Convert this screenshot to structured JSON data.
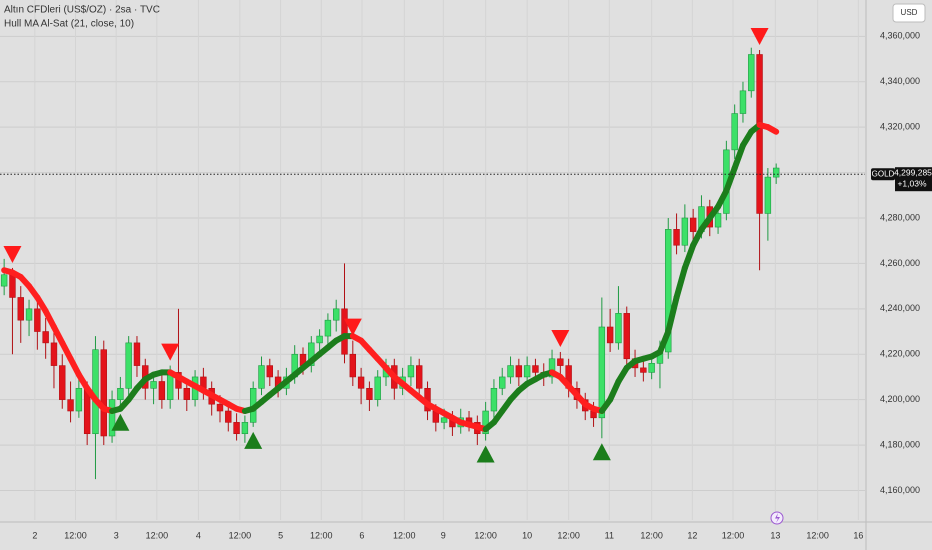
{
  "chart_data": {
    "type": "candlestick",
    "title": "Altın CFDleri (US$/OZ) · 2sa · TVC",
    "subtitle": "Hull MA Al-Sat (21, close, 10)",
    "currency": "USD",
    "symbol": "GOLD",
    "last_price": {
      "value": 4299.285,
      "label": "4,299,285"
    },
    "change_label": "+1,03%",
    "up_color": "#3ce068",
    "down_color": "#e3141b",
    "grid": true,
    "ylim": [
      4147,
      4376
    ],
    "yticks": [
      {
        "value": 4160,
        "label": "4,160,000"
      },
      {
        "value": 4180,
        "label": "4,180,000"
      },
      {
        "value": 4200,
        "label": "4,200,000"
      },
      {
        "value": 4220,
        "label": "4,220,000"
      },
      {
        "value": 4240,
        "label": "4,240,000"
      },
      {
        "value": 4260,
        "label": "4,260,000"
      },
      {
        "value": 4280,
        "label": "4,280,000"
      },
      {
        "value": 4300,
        "label": "4,300,000"
      },
      {
        "value": 4320,
        "label": "4,320,000"
      },
      {
        "value": 4340,
        "label": "4,340,000"
      },
      {
        "value": 4360,
        "label": "4,360,000"
      }
    ],
    "xlim": [
      -0.5,
      103.7
    ],
    "xticks": [
      {
        "value": 3.7,
        "label": "2"
      },
      {
        "value": 8.6,
        "label": "12:00"
      },
      {
        "value": 13.5,
        "label": "3"
      },
      {
        "value": 18.4,
        "label": "12:00"
      },
      {
        "value": 23.4,
        "label": "4"
      },
      {
        "value": 28.4,
        "label": "12:00"
      },
      {
        "value": 33.3,
        "label": "5"
      },
      {
        "value": 38.2,
        "label": "12:00"
      },
      {
        "value": 43.1,
        "label": "6"
      },
      {
        "value": 48.2,
        "label": "12:00"
      },
      {
        "value": 52.9,
        "label": "9"
      },
      {
        "value": 58,
        "label": "12:00"
      },
      {
        "value": 63,
        "label": "10"
      },
      {
        "value": 68,
        "label": "12:00"
      },
      {
        "value": 72.9,
        "label": "11"
      },
      {
        "value": 78,
        "label": "12:00"
      },
      {
        "value": 82.9,
        "label": "12"
      },
      {
        "value": 87.8,
        "label": "12:00"
      },
      {
        "value": 92.9,
        "label": "13"
      },
      {
        "value": 98,
        "label": "12:00"
      },
      {
        "value": 102.9,
        "label": "16"
      }
    ],
    "candles": [
      [
        4250,
        4262,
        4246,
        4255
      ],
      [
        4255,
        4258,
        4220,
        4245
      ],
      [
        4245,
        4250,
        4225,
        4235
      ],
      [
        4235,
        4244,
        4228,
        4240
      ],
      [
        4240,
        4243,
        4222,
        4230
      ],
      [
        4230,
        4236,
        4218,
        4225
      ],
      [
        4225,
        4230,
        4205,
        4215
      ],
      [
        4215,
        4220,
        4196,
        4200
      ],
      [
        4200,
        4208,
        4190,
        4195
      ],
      [
        4195,
        4210,
        4192,
        4205
      ],
      [
        4205,
        4208,
        4180,
        4185
      ],
      [
        4185,
        4228,
        4165,
        4222
      ],
      [
        4222,
        4226,
        4180,
        4184
      ],
      [
        4184,
        4204,
        4181,
        4200
      ],
      [
        4200,
        4210,
        4196,
        4205
      ],
      [
        4205,
        4228,
        4202,
        4225
      ],
      [
        4225,
        4228,
        4210,
        4215
      ],
      [
        4215,
        4218,
        4200,
        4205
      ],
      [
        4205,
        4212,
        4198,
        4208
      ],
      [
        4208,
        4211,
        4196,
        4200
      ],
      [
        4200,
        4215,
        4196,
        4212
      ],
      [
        4212,
        4240,
        4200,
        4205
      ],
      [
        4205,
        4208,
        4195,
        4200
      ],
      [
        4200,
        4213,
        4197,
        4210
      ],
      [
        4210,
        4214,
        4200,
        4205
      ],
      [
        4205,
        4208,
        4193,
        4198
      ],
      [
        4198,
        4202,
        4190,
        4195
      ],
      [
        4195,
        4199,
        4186,
        4190
      ],
      [
        4190,
        4194,
        4182,
        4185
      ],
      [
        4185,
        4193,
        4181,
        4190
      ],
      [
        4190,
        4208,
        4188,
        4205
      ],
      [
        4205,
        4219,
        4202,
        4215
      ],
      [
        4215,
        4218,
        4206,
        4210
      ],
      [
        4210,
        4213,
        4201,
        4205
      ],
      [
        4205,
        4214,
        4202,
        4210
      ],
      [
        4210,
        4224,
        4207,
        4220
      ],
      [
        4220,
        4223,
        4211,
        4215
      ],
      [
        4215,
        4228,
        4212,
        4225
      ],
      [
        4225,
        4231,
        4221,
        4228
      ],
      [
        4228,
        4238,
        4224,
        4235
      ],
      [
        4235,
        4244,
        4230,
        4240
      ],
      [
        4240,
        4260,
        4216,
        4220
      ],
      [
        4220,
        4226,
        4206,
        4210
      ],
      [
        4210,
        4214,
        4198,
        4205
      ],
      [
        4205,
        4208,
        4195,
        4200
      ],
      [
        4200,
        4213,
        4197,
        4210
      ],
      [
        4210,
        4218,
        4206,
        4215
      ],
      [
        4215,
        4218,
        4200,
        4205
      ],
      [
        4205,
        4214,
        4202,
        4210
      ],
      [
        4210,
        4219,
        4206,
        4215
      ],
      [
        4215,
        4218,
        4200,
        4205
      ],
      [
        4205,
        4208,
        4191,
        4195
      ],
      [
        4195,
        4198,
        4186,
        4190
      ],
      [
        4190,
        4196,
        4187,
        4192
      ],
      [
        4192,
        4195,
        4184,
        4188
      ],
      [
        4188,
        4196,
        4185,
        4192
      ],
      [
        4192,
        4195,
        4186,
        4190
      ],
      [
        4190,
        4193,
        4180,
        4185
      ],
      [
        4185,
        4199,
        4182,
        4195
      ],
      [
        4195,
        4209,
        4192,
        4205
      ],
      [
        4205,
        4214,
        4202,
        4210
      ],
      [
        4210,
        4219,
        4207,
        4215
      ],
      [
        4215,
        4218,
        4206,
        4210
      ],
      [
        4210,
        4219,
        4207,
        4215
      ],
      [
        4215,
        4218,
        4208,
        4212
      ],
      [
        4212,
        4216,
        4206,
        4210
      ],
      [
        4210,
        4222,
        4207,
        4218
      ],
      [
        4218,
        4221,
        4211,
        4215
      ],
      [
        4215,
        4218,
        4201,
        4205
      ],
      [
        4205,
        4208,
        4196,
        4200
      ],
      [
        4200,
        4203,
        4191,
        4195
      ],
      [
        4195,
        4199,
        4188,
        4192
      ],
      [
        4192,
        4245,
        4183,
        4232
      ],
      [
        4232,
        4240,
        4221,
        4225
      ],
      [
        4225,
        4250,
        4222,
        4238
      ],
      [
        4238,
        4241,
        4214,
        4218
      ],
      [
        4218,
        4222,
        4210,
        4214
      ],
      [
        4214,
        4218,
        4208,
        4212
      ],
      [
        4212,
        4220,
        4209,
        4216
      ],
      [
        4216,
        4226,
        4205,
        4221
      ],
      [
        4221,
        4280,
        4218,
        4275
      ],
      [
        4275,
        4282,
        4264,
        4268
      ],
      [
        4268,
        4286,
        4265,
        4280
      ],
      [
        4280,
        4284,
        4270,
        4274
      ],
      [
        4274,
        4290,
        4271,
        4285
      ],
      [
        4285,
        4288,
        4272,
        4276
      ],
      [
        4276,
        4286,
        4273,
        4282
      ],
      [
        4282,
        4314,
        4279,
        4310
      ],
      [
        4310,
        4330,
        4306,
        4326
      ],
      [
        4326,
        4340,
        4322,
        4336
      ],
      [
        4336,
        4355,
        4333,
        4352
      ],
      [
        4352,
        4354,
        4257,
        4282
      ],
      [
        4282,
        4302,
        4270,
        4298
      ],
      [
        4298,
        4304,
        4295,
        4302
      ]
    ],
    "hull": {
      "up_color": "#1c7d1c",
      "down_color": "#ff1f1f",
      "values": [
        4257,
        4256,
        4254,
        4250,
        4245,
        4239,
        4232,
        4225,
        4218,
        4211,
        4205,
        4200,
        4196,
        4195,
        4196,
        4200,
        4205,
        4209,
        4211,
        4212,
        4212,
        4210,
        4208,
        4206,
        4204,
        4202,
        4200,
        4198,
        4196,
        4195,
        4196,
        4199,
        4202,
        4205,
        4208,
        4211,
        4214,
        4217,
        4220,
        4223,
        4226,
        4228,
        4228,
        4226,
        4222,
        4218,
        4214,
        4210,
        4207,
        4204,
        4201,
        4198,
        4196,
        4194,
        4192,
        4190,
        4189,
        4188,
        4187,
        4190,
        4195,
        4200,
        4204,
        4207,
        4209,
        4211,
        4212,
        4210,
        4206,
        4202,
        4198,
        4196,
        4195,
        4200,
        4208,
        4214,
        4217,
        4218,
        4219,
        4221,
        4230,
        4245,
        4258,
        4268,
        4275,
        4280,
        4285,
        4292,
        4302,
        4312,
        4318,
        4321,
        4320,
        4318
      ]
    },
    "signals": {
      "buy": [
        14,
        30,
        58,
        72
      ],
      "sell": [
        1,
        20,
        42,
        67,
        91
      ],
      "buy_color": "#1b7d1b",
      "sell_color": "#ff1a1a"
    }
  }
}
